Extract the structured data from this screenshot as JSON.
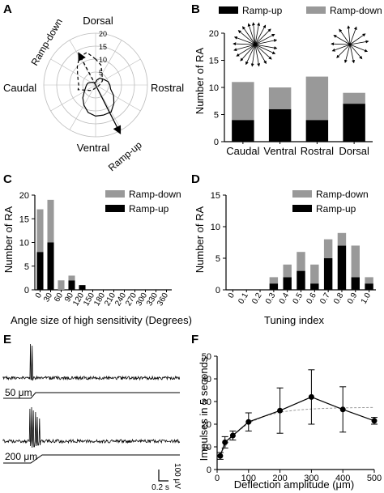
{
  "colors": {
    "ramp_up": "#000000",
    "ramp_down": "#999999",
    "grid": "#bbbbbb",
    "fit": "#9a9a9a"
  },
  "chart_data": [
    {
      "panel": "A",
      "type": "polar",
      "direction_labels": {
        "top": "Dorsal",
        "left": "Caudal",
        "right": "Rostral",
        "bottom": "Ventral"
      },
      "radial_ticks": [
        5,
        10,
        15,
        20
      ],
      "rmax": 20,
      "arrow_labels": {
        "ramp_down": "Ramp-down",
        "ramp_up": "Ramp-up"
      },
      "ramp_up_profile": {
        "angles_deg": [
          90,
          75,
          60,
          45,
          30,
          15,
          0,
          -15,
          -30,
          -45,
          -60,
          -75,
          -90,
          -105,
          -120,
          -135,
          -150,
          -165,
          180,
          165,
          150,
          135,
          120,
          105
        ],
        "radii": [
          1,
          2,
          3,
          3.5,
          4,
          5,
          5.5,
          6,
          8,
          10,
          12,
          12,
          12,
          11,
          9,
          7,
          5,
          4,
          3.5,
          3,
          2,
          1.5,
          1,
          1
        ]
      },
      "ramp_down_profile": {
        "angles_deg": [
          90,
          105,
          120,
          135,
          150,
          165,
          180,
          -165,
          -150,
          -135,
          -120,
          -105,
          -90,
          -75,
          -45,
          0,
          30,
          60,
          75
        ],
        "radii": [
          10,
          13,
          12.5,
          10,
          8,
          7,
          6.5,
          7,
          4,
          3,
          2,
          1.5,
          1,
          1,
          1,
          1.5,
          3,
          5,
          8
        ]
      },
      "ramp_up_vector": {
        "angle_deg": -63,
        "r": 21
      },
      "ramp_down_vector": {
        "angle_deg": 118,
        "r": 14
      }
    },
    {
      "panel": "B",
      "type": "bar",
      "stacked": true,
      "categories": [
        "Caudal",
        "Ventral",
        "Rostral",
        "Dorsal"
      ],
      "series": [
        {
          "name": "Ramp-up",
          "values": [
            4,
            6,
            4,
            7
          ]
        },
        {
          "name": "Ramp-down",
          "values": [
            7,
            4,
            8,
            2
          ]
        }
      ],
      "ylabel": "Number of RA",
      "ylim": [
        0,
        20
      ],
      "yticks": [
        0,
        5,
        10,
        15,
        20
      ],
      "legend": [
        "Ramp-up",
        "Ramp-down"
      ],
      "spokes_ramp_up_deg": [
        12,
        28,
        45,
        62,
        80,
        95,
        108,
        125,
        140,
        160,
        178,
        195,
        212,
        228,
        245,
        262,
        280,
        300,
        318,
        335,
        350
      ],
      "spokes_ramp_down_deg": [
        10,
        35,
        70,
        95,
        125,
        150,
        178,
        200,
        225,
        255,
        282,
        310,
        338
      ]
    },
    {
      "panel": "C",
      "type": "bar",
      "stacked": true,
      "categories": [
        "0",
        "30",
        "60",
        "90",
        "120",
        "150",
        "180",
        "210",
        "240",
        "270",
        "300",
        "330",
        "360"
      ],
      "series": [
        {
          "name": "Ramp-up",
          "values": [
            8,
            10,
            0,
            2,
            1,
            0,
            0,
            0,
            0,
            0,
            0,
            0,
            0
          ]
        },
        {
          "name": "Ramp-down",
          "values": [
            9,
            9,
            2,
            1,
            0,
            0,
            0,
            0,
            0,
            0,
            0,
            0,
            0
          ]
        }
      ],
      "xlabel": "Angle size of high sensitivity (Degrees)",
      "ylabel": "Number of RA",
      "ylim": [
        0,
        20
      ],
      "yticks": [
        0,
        5,
        10,
        15,
        20
      ],
      "legend": [
        "Ramp-down",
        "Ramp-up"
      ]
    },
    {
      "panel": "D",
      "type": "bar",
      "stacked": true,
      "categories": [
        "0",
        "0.1",
        "0.2",
        "0.3",
        "0.4",
        "0.5",
        "0.6",
        "0.7",
        "0.8",
        "0.9",
        "1.0"
      ],
      "series": [
        {
          "name": "Ramp-up",
          "values": [
            0,
            0,
            0,
            1,
            2,
            3,
            1,
            5,
            7,
            2,
            1
          ]
        },
        {
          "name": "Ramp-down",
          "values": [
            0,
            0,
            0,
            1,
            2,
            3,
            3,
            3,
            2,
            5,
            1
          ]
        }
      ],
      "xlabel": "Tuning  index",
      "ylabel": "Number of RA",
      "ylim": [
        0,
        15
      ],
      "yticks": [
        0,
        5,
        10,
        15
      ],
      "legend": [
        "Ramp-down",
        "Ramp-up"
      ]
    },
    {
      "panel": "E",
      "type": "trace",
      "stimulus_labels": [
        "50 μm",
        "200 μm"
      ],
      "scale_bar_labels": {
        "voltage": "100 μV",
        "time": "0.2 s"
      }
    },
    {
      "panel": "F",
      "type": "line",
      "x": [
        10,
        25,
        50,
        100,
        200,
        300,
        400,
        500
      ],
      "y": [
        6,
        12,
        15,
        21,
        26,
        32,
        26.5,
        21.5
      ],
      "yerr": [
        1.5,
        2.5,
        2,
        4,
        10,
        12,
        10,
        1.5
      ],
      "xlabel": "Deflection amplitude (μm)",
      "ylabel": "Impulses in 5 seconds",
      "xlim": [
        0,
        500
      ],
      "ylim": [
        0,
        50
      ],
      "xticks": [
        0,
        100,
        200,
        300,
        400,
        500
      ],
      "yticks": [
        0,
        10,
        20,
        30,
        40,
        50
      ],
      "fit_curve": {
        "x": [
          10,
          50,
          100,
          150,
          200,
          250,
          300,
          350,
          400,
          450,
          500
        ],
        "y": [
          7,
          15,
          20.5,
          23.5,
          25.3,
          26.2,
          26.7,
          27,
          27.2,
          27.3,
          27.4
        ]
      }
    }
  ]
}
